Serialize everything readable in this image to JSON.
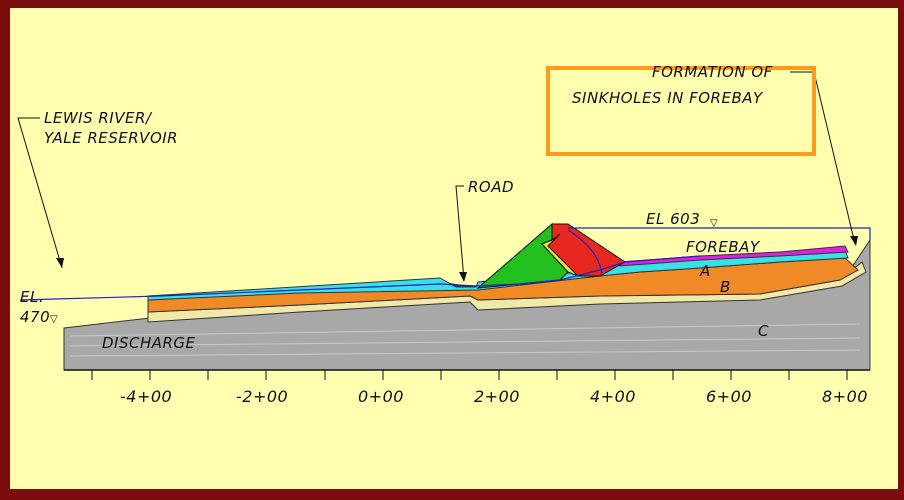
{
  "labels": {
    "reservoir_line1": "LEWIS RIVER/",
    "reservoir_line2": "YALE RESERVOIR",
    "road": "ROAD",
    "el_603": "EL 603",
    "forebay": "FOREBAY",
    "el_470_line1": "EL.",
    "el_470_line2": "470",
    "discharge": "DISCHARGE",
    "sinkhole_line1": "FORMATION OF",
    "sinkhole_line2": "SINKHOLES IN FOREBAY",
    "layer_a": "A",
    "layer_b": "B",
    "layer_c": "C"
  },
  "stations": [
    "-4+00",
    "-2+00",
    "0+00",
    "2+00",
    "4+00",
    "6+00",
    "8+00"
  ],
  "colors": {
    "background": "#ffffb0",
    "border": "#7a0c0c",
    "bedrock": "#a8a8a8",
    "layer_b": "#f08a26",
    "water": "#38e0e8",
    "dam_core_red": "#e8281e",
    "dam_fill_green": "#22c01e",
    "filter_yellow": "#f0f020",
    "liner_magenta": "#e020e0",
    "highlight_box": "#ff9a1a"
  }
}
